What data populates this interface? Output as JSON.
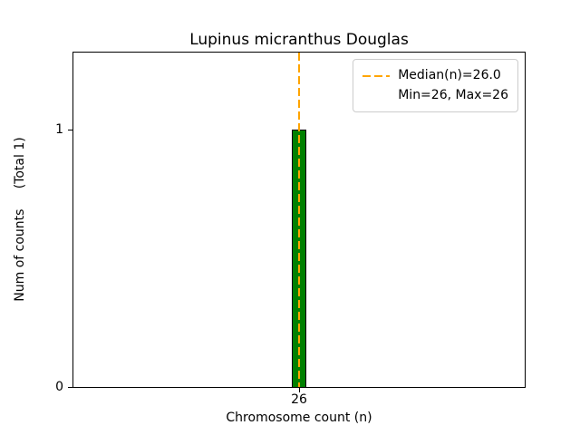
{
  "figure": {
    "background_color": "#ffffff"
  },
  "chart_data": {
    "type": "bar",
    "title": "Lupinus micranthus Douglas",
    "xlabel": "Chromosome count (n)",
    "ylabel": "Num of counts     (Total 1)",
    "categories": [
      "26"
    ],
    "values": [
      1
    ],
    "total_counts": 1,
    "ylim": [
      0,
      1.3
    ],
    "ytick_labels": [
      "0",
      "1"
    ],
    "xtick_labels": [
      "26"
    ],
    "grid": false,
    "bar_color": "#008000",
    "bar_edge_color": "#000000",
    "median_line": {
      "value": 26.0,
      "color": "#ffa500",
      "style": "dashed",
      "orientation": "vertical"
    },
    "stats": {
      "median": 26.0,
      "min": 26,
      "max": 26
    },
    "legend": {
      "position": "upper right",
      "entries": [
        "Median(n)=26.0",
        "Min=26, Max=26"
      ]
    }
  }
}
